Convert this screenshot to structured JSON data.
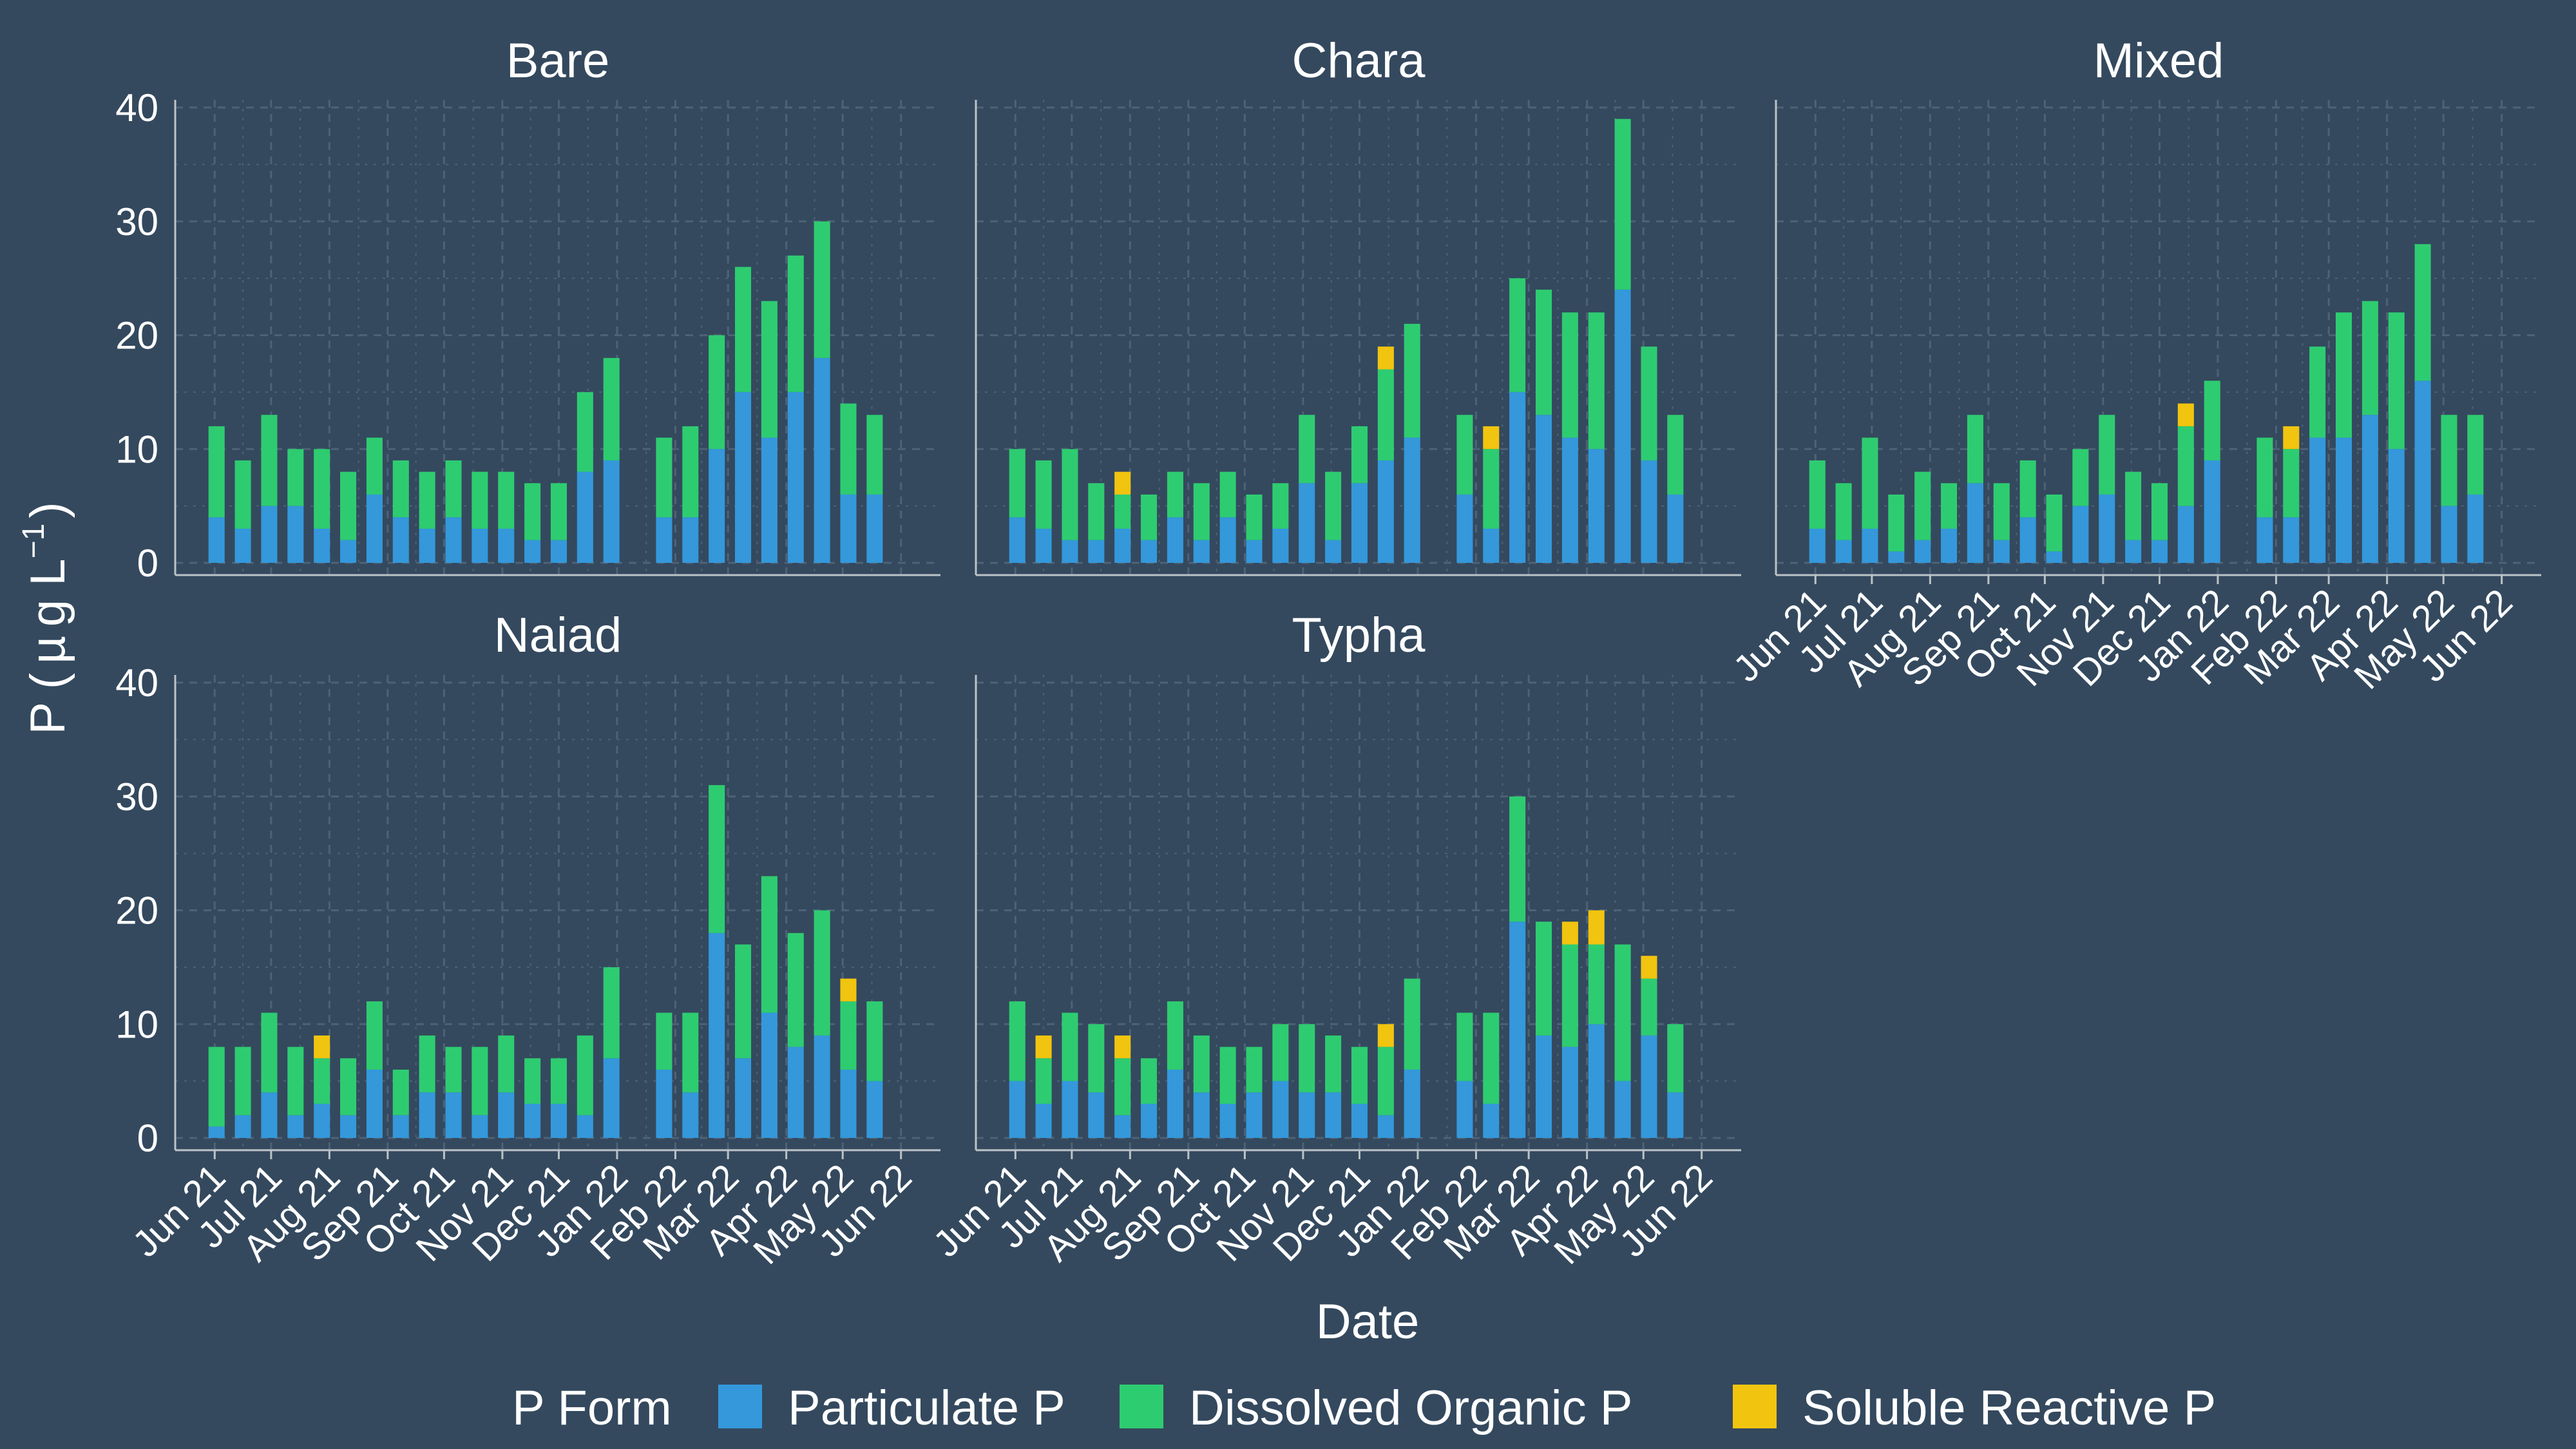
{
  "chart_data": {
    "type": "bar",
    "stacked": true,
    "facet_titles": [
      "Bare",
      "Chara",
      "Mixed",
      "Naiad",
      "Typha"
    ],
    "xlabel": "Date",
    "ylabel_main": "P (",
    "ylabel_unit_mu": "µ",
    "ylabel_unit_rest": "g L",
    "ylabel_exponent": "−1",
    "ylabel_close": ")",
    "ylim": [
      0,
      40
    ],
    "yticks": [
      "0",
      "10",
      "20",
      "30",
      "40"
    ],
    "x_ticks": [
      "Jun 21",
      "Jul 21",
      "Aug 21",
      "Sep 21",
      "Oct 21",
      "Nov 21",
      "Dec 21",
      "Jan 22",
      "Feb 22",
      "Mar 22",
      "Apr 22",
      "May 22",
      "Jun 22"
    ],
    "x_tick_dates": [
      "2021-06-01",
      "2021-07-01",
      "2021-08-01",
      "2021-09-01",
      "2021-10-01",
      "2021-11-01",
      "2021-12-01",
      "2022-01-01",
      "2022-02-01",
      "2022-03-01",
      "2022-04-01",
      "2022-05-01",
      "2022-06-01"
    ],
    "x_range": [
      "2021-05-11",
      "2022-06-22"
    ],
    "dates": [
      "2021-06-02",
      "2021-06-16",
      "2021-06-30",
      "2021-07-14",
      "2021-07-28",
      "2021-08-11",
      "2021-08-25",
      "2021-09-08",
      "2021-09-22",
      "2021-10-06",
      "2021-10-20",
      "2021-11-03",
      "2021-11-17",
      "2021-12-01",
      "2021-12-15",
      "2021-12-29",
      "2022-01-26",
      "2022-02-09",
      "2022-02-23",
      "2022-03-09",
      "2022-03-23",
      "2022-04-06",
      "2022-04-20",
      "2022-05-04",
      "2022-05-18",
      "2022-06-01"
    ],
    "legend_title": "P Form",
    "legend_position": "bottom",
    "grid": true,
    "series": [
      {
        "name": "Particulate P",
        "color": "#3498db"
      },
      {
        "name": "Dissolved Organic P",
        "color": "#2ecc71"
      },
      {
        "name": "Soluble Reactive P",
        "color": "#f1c40f"
      }
    ],
    "panels": [
      {
        "title": "Bare",
        "values": [
          [
            4,
            8,
            0
          ],
          [
            3,
            6,
            0
          ],
          [
            5,
            8,
            0
          ],
          [
            5,
            5,
            0
          ],
          [
            3,
            7,
            0
          ],
          [
            2,
            6,
            0
          ],
          [
            6,
            5,
            0
          ],
          [
            4,
            5,
            0
          ],
          [
            3,
            5,
            0
          ],
          [
            4,
            5,
            0
          ],
          [
            3,
            5,
            0
          ],
          [
            3,
            5,
            0
          ],
          [
            2,
            5,
            0
          ],
          [
            2,
            5,
            0
          ],
          [
            8,
            7,
            0
          ],
          [
            9,
            9,
            0
          ],
          [
            4,
            7,
            0
          ],
          [
            4,
            8,
            0
          ],
          [
            10,
            10,
            0
          ],
          [
            15,
            11,
            0
          ],
          [
            11,
            12,
            0
          ],
          [
            15,
            12,
            0
          ],
          [
            18,
            12,
            0
          ],
          [
            6,
            8,
            0
          ],
          [
            6,
            7,
            0
          ],
          null
        ]
      },
      {
        "title": "Chara",
        "values": [
          [
            4,
            6,
            0
          ],
          [
            3,
            6,
            0
          ],
          [
            2,
            8,
            0
          ],
          [
            2,
            5,
            0
          ],
          [
            3,
            3,
            2
          ],
          [
            2,
            4,
            0
          ],
          [
            4,
            4,
            0
          ],
          [
            2,
            5,
            0
          ],
          [
            4,
            4,
            0
          ],
          [
            2,
            4,
            0
          ],
          [
            3,
            4,
            0
          ],
          [
            7,
            6,
            0
          ],
          [
            2,
            6,
            0
          ],
          [
            7,
            5,
            0
          ],
          [
            9,
            8,
            2
          ],
          [
            11,
            10,
            0
          ],
          [
            6,
            7,
            0
          ],
          [
            3,
            7,
            2
          ],
          [
            15,
            10,
            0
          ],
          [
            13,
            11,
            0
          ],
          [
            11,
            11,
            0
          ],
          [
            10,
            12,
            0
          ],
          [
            24,
            15,
            0
          ],
          [
            9,
            10,
            0
          ],
          [
            6,
            7,
            0
          ],
          null
        ]
      },
      {
        "title": "Mixed",
        "values": [
          [
            3,
            6,
            0
          ],
          [
            2,
            5,
            0
          ],
          [
            3,
            8,
            0
          ],
          [
            1,
            5,
            0
          ],
          [
            2,
            6,
            0
          ],
          [
            3,
            4,
            0
          ],
          [
            7,
            6,
            0
          ],
          [
            2,
            5,
            0
          ],
          [
            4,
            5,
            0
          ],
          [
            1,
            5,
            0
          ],
          [
            5,
            5,
            0
          ],
          [
            6,
            7,
            0
          ],
          [
            2,
            6,
            0
          ],
          [
            2,
            5,
            0
          ],
          [
            5,
            7,
            2
          ],
          [
            9,
            7,
            0
          ],
          [
            4,
            7,
            0
          ],
          [
            4,
            6,
            2
          ],
          [
            11,
            8,
            0
          ],
          [
            11,
            11,
            0
          ],
          [
            13,
            10,
            0
          ],
          [
            10,
            12,
            0
          ],
          [
            16,
            12,
            0
          ],
          [
            5,
            8,
            0
          ],
          [
            6,
            7,
            0
          ],
          null
        ]
      },
      {
        "title": "Naiad",
        "values": [
          [
            1,
            7,
            0
          ],
          [
            2,
            6,
            0
          ],
          [
            4,
            7,
            0
          ],
          [
            2,
            6,
            0
          ],
          [
            3,
            4,
            2
          ],
          [
            2,
            5,
            0
          ],
          [
            6,
            6,
            0
          ],
          [
            2,
            4,
            0
          ],
          [
            4,
            5,
            0
          ],
          [
            4,
            4,
            0
          ],
          [
            2,
            6,
            0
          ],
          [
            4,
            5,
            0
          ],
          [
            3,
            4,
            0
          ],
          [
            3,
            4,
            0
          ],
          [
            2,
            7,
            0
          ],
          [
            7,
            8,
            0
          ],
          [
            6,
            5,
            0
          ],
          [
            4,
            7,
            0
          ],
          [
            18,
            13,
            0
          ],
          [
            7,
            10,
            0
          ],
          [
            11,
            12,
            0
          ],
          [
            8,
            10,
            0
          ],
          [
            9,
            11,
            0
          ],
          [
            6,
            6,
            2
          ],
          [
            5,
            7,
            0
          ],
          null
        ]
      },
      {
        "title": "Typha",
        "values": [
          [
            5,
            7,
            0
          ],
          [
            3,
            4,
            2
          ],
          [
            5,
            6,
            0
          ],
          [
            4,
            6,
            0
          ],
          [
            2,
            5,
            2
          ],
          [
            3,
            4,
            0
          ],
          [
            6,
            6,
            0
          ],
          [
            4,
            5,
            0
          ],
          [
            3,
            5,
            0
          ],
          [
            4,
            4,
            0
          ],
          [
            5,
            5,
            0
          ],
          [
            4,
            6,
            0
          ],
          [
            4,
            5,
            0
          ],
          [
            3,
            5,
            0
          ],
          [
            2,
            6,
            2
          ],
          [
            6,
            8,
            0
          ],
          [
            5,
            6,
            0
          ],
          [
            3,
            8,
            0
          ],
          [
            19,
            11,
            0
          ],
          [
            9,
            10,
            0
          ],
          [
            8,
            9,
            2
          ],
          [
            10,
            7,
            3
          ],
          [
            5,
            12,
            0
          ],
          [
            9,
            5,
            2
          ],
          [
            4,
            6,
            0
          ],
          null
        ]
      }
    ]
  }
}
